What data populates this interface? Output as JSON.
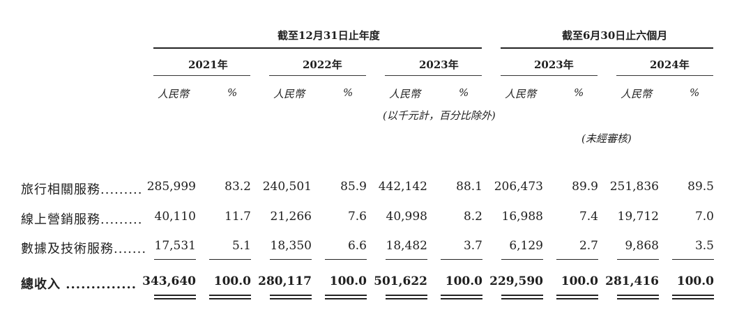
{
  "header": {
    "group1": "截至12月31日止年度",
    "group2": "截至6月30日止六個月",
    "years": [
      "2021年",
      "2022年",
      "2023年",
      "2023年",
      "2024年"
    ],
    "unit_rmb": "人民幣",
    "unit_pct": "%",
    "unit_note": "(以千元計，百分比除外)",
    "unaudited": "(未經審核)"
  },
  "rows": [
    {
      "label": "旅行相關服務.........",
      "values": [
        "285,999",
        "83.2",
        "240,501",
        "85.9",
        "442,142",
        "88.1",
        "206,473",
        "89.9",
        "251,836",
        "89.5"
      ]
    },
    {
      "label": "線上營銷服務.........",
      "values": [
        "40,110",
        "11.7",
        "21,266",
        "7.6",
        "40,998",
        "8.2",
        "16,988",
        "7.4",
        "19,712",
        "7.0"
      ]
    },
    {
      "label": "數據及技術服務.......",
      "values": [
        "17,531",
        "5.1",
        "18,350",
        "6.6",
        "18,482",
        "3.7",
        "6,129",
        "2.7",
        "9,868",
        "3.5"
      ]
    }
  ],
  "total": {
    "label": "總收入 ..............",
    "values": [
      "343,640",
      "100.0",
      "280,117",
      "100.0",
      "501,622",
      "100.0",
      "229,590",
      "100.0",
      "281,416",
      "100.0"
    ]
  }
}
